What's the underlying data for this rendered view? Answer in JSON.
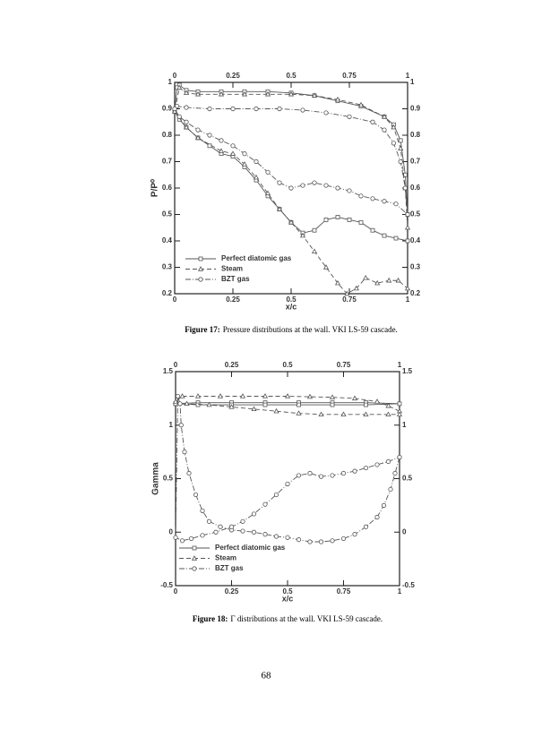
{
  "chart_data": [
    {
      "type": "line",
      "xlabel": "x/c",
      "ylabel": "P/P⁰",
      "xlim": [
        0,
        1
      ],
      "xticks": [
        0,
        0.25,
        0.5,
        0.75,
        1
      ],
      "ylim": [
        0.2,
        1
      ],
      "yticks": [
        0.2,
        0.3,
        0.4,
        0.5,
        0.6,
        0.7,
        0.8,
        0.9,
        1
      ],
      "legend": "lower-left",
      "series": [
        {
          "name": "Perfect diatomic gas",
          "color": "#555555",
          "marker": "square",
          "dash": "solid",
          "x": [
            1,
            0.99,
            0.97,
            0.94,
            0.9,
            0.8,
            0.7,
            0.6,
            0.5,
            0.4,
            0.3,
            0.2,
            0.1,
            0.05,
            0.02,
            0.01,
            0,
            0.02,
            0.05,
            0.1,
            0.15,
            0.2,
            0.25,
            0.3,
            0.35,
            0.4,
            0.45,
            0.5,
            0.55,
            0.6,
            0.65,
            0.7,
            0.75,
            0.8,
            0.85,
            0.9,
            0.95,
            1
          ],
          "values": [
            0.5,
            0.65,
            0.78,
            0.84,
            0.87,
            0.91,
            0.93,
            0.95,
            0.96,
            0.965,
            0.965,
            0.965,
            0.965,
            0.97,
            0.99,
            0.98,
            0.89,
            0.86,
            0.83,
            0.79,
            0.76,
            0.73,
            0.72,
            0.68,
            0.63,
            0.57,
            0.52,
            0.47,
            0.43,
            0.44,
            0.48,
            0.49,
            0.48,
            0.47,
            0.44,
            0.42,
            0.41,
            0.4
          ]
        },
        {
          "name": "Steam",
          "color": "#555555",
          "marker": "triangle",
          "dash": "dashed",
          "x": [
            1,
            0.99,
            0.97,
            0.94,
            0.9,
            0.8,
            0.7,
            0.6,
            0.5,
            0.4,
            0.3,
            0.2,
            0.1,
            0.05,
            0.02,
            0,
            0.05,
            0.1,
            0.2,
            0.25,
            0.3,
            0.35,
            0.4,
            0.45,
            0.5,
            0.55,
            0.6,
            0.65,
            0.7,
            0.74,
            0.78,
            0.82,
            0.87,
            0.92,
            0.96,
            1
          ],
          "values": [
            0.45,
            0.6,
            0.75,
            0.83,
            0.87,
            0.915,
            0.935,
            0.95,
            0.955,
            0.955,
            0.955,
            0.955,
            0.955,
            0.96,
            0.98,
            0.89,
            0.83,
            0.79,
            0.74,
            0.73,
            0.69,
            0.64,
            0.58,
            0.52,
            0.47,
            0.42,
            0.36,
            0.3,
            0.24,
            0.2,
            0.22,
            0.26,
            0.24,
            0.25,
            0.25,
            0.22
          ]
        },
        {
          "name": "BZT gas",
          "color": "#555555",
          "marker": "circle",
          "dash": "dashdot",
          "x": [
            1,
            0.99,
            0.97,
            0.94,
            0.9,
            0.85,
            0.75,
            0.65,
            0.55,
            0.45,
            0.35,
            0.25,
            0.15,
            0.05,
            0.01,
            0,
            0.02,
            0.05,
            0.1,
            0.15,
            0.2,
            0.25,
            0.3,
            0.35,
            0.4,
            0.45,
            0.5,
            0.55,
            0.6,
            0.65,
            0.7,
            0.75,
            0.8,
            0.85,
            0.9,
            0.95,
            1
          ],
          "values": [
            0.5,
            0.6,
            0.7,
            0.77,
            0.82,
            0.85,
            0.87,
            0.885,
            0.895,
            0.9,
            0.9,
            0.9,
            0.9,
            0.905,
            0.91,
            0.9,
            0.87,
            0.85,
            0.82,
            0.8,
            0.78,
            0.76,
            0.73,
            0.7,
            0.66,
            0.62,
            0.6,
            0.61,
            0.62,
            0.61,
            0.6,
            0.59,
            0.57,
            0.56,
            0.55,
            0.54,
            0.5
          ]
        }
      ],
      "caption_label": "Figure 17:",
      "caption": "Pressure distributions at the wall. VKI LS-59 cascade."
    },
    {
      "type": "line",
      "xlabel": "x/c",
      "ylabel": "Gamma",
      "xlim": [
        0,
        1
      ],
      "xticks": [
        0,
        0.25,
        0.5,
        0.75,
        1
      ],
      "ylim": [
        -0.5,
        1.5
      ],
      "yticks": [
        -0.5,
        0,
        0.5,
        1,
        1.5
      ],
      "legend": "lower-left",
      "series": [
        {
          "name": "Perfect diatomic gas",
          "color": "#555555",
          "marker": "square",
          "dash": "solid",
          "x": [
            0,
            0.1,
            0.25,
            0.4,
            0.55,
            0.7,
            0.85,
            1,
            0.85,
            0.7,
            0.55,
            0.4,
            0.25,
            0.1,
            0
          ],
          "values": [
            1.2,
            1.21,
            1.21,
            1.21,
            1.21,
            1.21,
            1.21,
            1.2,
            1.19,
            1.19,
            1.19,
            1.19,
            1.19,
            1.19,
            1.2
          ]
        },
        {
          "name": "Steam",
          "color": "#555555",
          "marker": "triangle",
          "dash": "dashed",
          "x": [
            1,
            0.95,
            0.9,
            0.8,
            0.7,
            0.6,
            0.5,
            0.4,
            0.3,
            0.2,
            0.1,
            0.03,
            0,
            0.05,
            0.15,
            0.25,
            0.35,
            0.45,
            0.55,
            0.65,
            0.75,
            0.85,
            0.95,
            1
          ],
          "values": [
            1.13,
            1.18,
            1.22,
            1.25,
            1.26,
            1.265,
            1.27,
            1.27,
            1.27,
            1.27,
            1.27,
            1.27,
            1.22,
            1.2,
            1.19,
            1.17,
            1.15,
            1.13,
            1.11,
            1.1,
            1.1,
            1.1,
            1.1,
            1.1
          ]
        },
        {
          "name": "BZT gas",
          "color": "#555555",
          "marker": "circle",
          "dash": "dashdot",
          "x": [
            1,
            0.98,
            0.96,
            0.93,
            0.9,
            0.85,
            0.8,
            0.75,
            0.7,
            0.65,
            0.6,
            0.55,
            0.5,
            0.45,
            0.4,
            0.35,
            0.3,
            0.25,
            0.2,
            0.15,
            0.12,
            0.09,
            0.06,
            0.04,
            0.025,
            0.02,
            0.01,
            0,
            0.03,
            0.07,
            0.12,
            0.18,
            0.25,
            0.3,
            0.35,
            0.4,
            0.45,
            0.5,
            0.55,
            0.6,
            0.65,
            0.7,
            0.75,
            0.8,
            0.85,
            0.9,
            0.95,
            1
          ],
          "values": [
            0.7,
            0.55,
            0.4,
            0.25,
            0.14,
            0.05,
            -0.02,
            -0.06,
            -0.08,
            -0.09,
            -0.09,
            -0.07,
            -0.05,
            -0.04,
            -0.02,
            0,
            0.01,
            0.02,
            0.05,
            0.1,
            0.2,
            0.35,
            0.55,
            0.75,
            1,
            1.2,
            1.27,
            -0.05,
            -0.08,
            -0.06,
            -0.03,
            0,
            0.05,
            0.1,
            0.17,
            0.26,
            0.35,
            0.45,
            0.53,
            0.55,
            0.52,
            0.53,
            0.55,
            0.57,
            0.6,
            0.63,
            0.66,
            0.7
          ]
        }
      ],
      "caption_label": "Figure 18:",
      "caption": "Γ distributions at the wall. VKI LS-59 cascade."
    }
  ],
  "page_number": "68"
}
